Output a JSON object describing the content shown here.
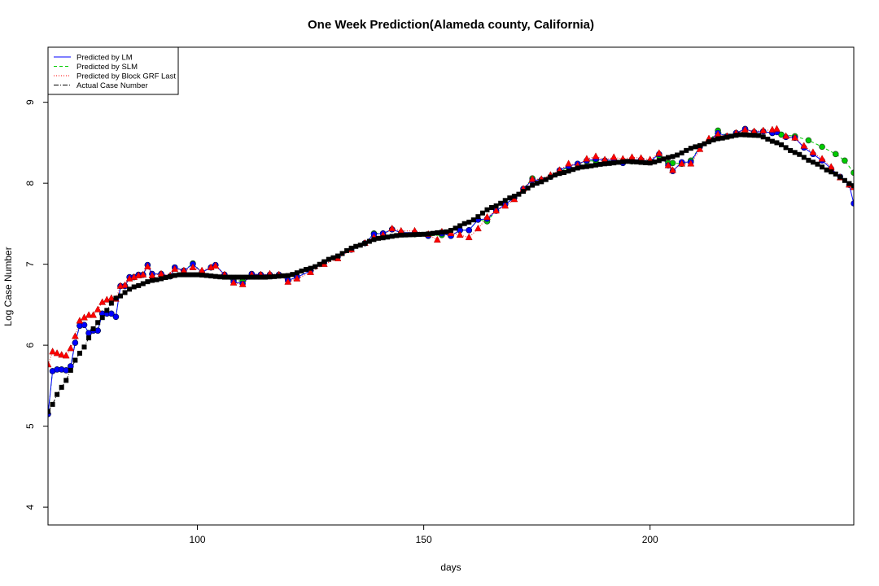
{
  "chart_data": {
    "type": "line",
    "title": "One Week Prediction(Alameda county, California)",
    "xlabel": "days",
    "ylabel": "Log Case Number",
    "xlim": [
      67,
      245
    ],
    "ylim": [
      3.78,
      9.68
    ],
    "x_ticks": [
      100,
      150,
      200
    ],
    "y_ticks": [
      4,
      5,
      6,
      7,
      8,
      9
    ],
    "grid": false,
    "legend_position": "top-left",
    "colors": {
      "lm": "#0000ff",
      "slm": "#00cc00",
      "grf": "#ff0000",
      "actual": "#000000"
    },
    "legend": [
      {
        "label": "Predicted by LM",
        "style": "solid",
        "color": "#0000ff"
      },
      {
        "label": "Predicted by SLM",
        "style": "dashed",
        "color": "#00cc00"
      },
      {
        "label": "Predicted by Block GRF Last",
        "style": "dotted",
        "color": "#ff0000"
      },
      {
        "label": "Actual Case Number",
        "style": "dotdash",
        "color": "#000000"
      }
    ],
    "actual_anchors": [
      [
        67,
        5.18
      ],
      [
        70,
        5.48
      ],
      [
        74,
        5.9
      ],
      [
        78,
        6.28
      ],
      [
        82,
        6.58
      ],
      [
        86,
        6.72
      ],
      [
        90,
        6.8
      ],
      [
        96,
        6.87
      ],
      [
        100,
        6.87
      ],
      [
        106,
        6.84
      ],
      [
        115,
        6.84
      ],
      [
        120,
        6.86
      ],
      [
        125,
        6.95
      ],
      [
        130,
        7.08
      ],
      [
        135,
        7.22
      ],
      [
        140,
        7.32
      ],
      [
        145,
        7.36
      ],
      [
        150,
        7.37
      ],
      [
        155,
        7.4
      ],
      [
        160,
        7.52
      ],
      [
        165,
        7.7
      ],
      [
        170,
        7.84
      ],
      [
        175,
        8.0
      ],
      [
        180,
        8.12
      ],
      [
        185,
        8.2
      ],
      [
        190,
        8.24
      ],
      [
        195,
        8.27
      ],
      [
        200,
        8.25
      ],
      [
        205,
        8.33
      ],
      [
        210,
        8.45
      ],
      [
        215,
        8.55
      ],
      [
        220,
        8.6
      ],
      [
        224,
        8.59
      ],
      [
        228,
        8.5
      ],
      [
        232,
        8.38
      ],
      [
        236,
        8.26
      ],
      [
        240,
        8.14
      ],
      [
        245,
        7.97
      ]
    ],
    "lm_points": [
      [
        67,
        5.15
      ],
      [
        68,
        5.68
      ],
      [
        69,
        5.7
      ],
      [
        70,
        5.7
      ],
      [
        71,
        5.69
      ],
      [
        72,
        5.74
      ],
      [
        73,
        6.03
      ],
      [
        74,
        6.24
      ],
      [
        75,
        6.25
      ],
      [
        76,
        6.15
      ],
      [
        77,
        6.18
      ],
      [
        78,
        6.18
      ],
      [
        79,
        6.39
      ],
      [
        80,
        6.39
      ],
      [
        81,
        6.39
      ],
      [
        82,
        6.35
      ],
      [
        83,
        6.73
      ],
      [
        84,
        6.73
      ],
      [
        85,
        6.84
      ],
      [
        86,
        6.84
      ],
      [
        87,
        6.87
      ],
      [
        88,
        6.87
      ],
      [
        89,
        6.99
      ],
      [
        90,
        6.88
      ],
      [
        92,
        6.88
      ],
      [
        94,
        6.85
      ],
      [
        95,
        6.96
      ],
      [
        97,
        6.92
      ],
      [
        99,
        7.0
      ],
      [
        101,
        6.9
      ],
      [
        103,
        6.96
      ],
      [
        104,
        6.99
      ],
      [
        106,
        6.87
      ],
      [
        108,
        6.78
      ],
      [
        110,
        6.76
      ],
      [
        112,
        6.88
      ],
      [
        114,
        6.87
      ],
      [
        116,
        6.87
      ],
      [
        118,
        6.87
      ],
      [
        120,
        6.8
      ],
      [
        122,
        6.84
      ],
      [
        125,
        6.92
      ],
      [
        128,
        7.02
      ],
      [
        131,
        7.09
      ],
      [
        134,
        7.18
      ],
      [
        137,
        7.26
      ],
      [
        139,
        7.37
      ],
      [
        141,
        7.38
      ],
      [
        143,
        7.43
      ],
      [
        145,
        7.39
      ],
      [
        148,
        7.39
      ],
      [
        151,
        7.35
      ],
      [
        154,
        7.38
      ],
      [
        156,
        7.35
      ],
      [
        158,
        7.42
      ],
      [
        160,
        7.42
      ],
      [
        162,
        7.55
      ],
      [
        164,
        7.56
      ],
      [
        166,
        7.66
      ],
      [
        168,
        7.74
      ],
      [
        170,
        7.82
      ],
      [
        172,
        7.93
      ],
      [
        174,
        8.04
      ],
      [
        176,
        8.04
      ],
      [
        178,
        8.08
      ],
      [
        180,
        8.16
      ],
      [
        182,
        8.21
      ],
      [
        184,
        8.24
      ],
      [
        186,
        8.28
      ],
      [
        188,
        8.3
      ],
      [
        190,
        8.28
      ],
      [
        192,
        8.29
      ],
      [
        194,
        8.25
      ],
      [
        196,
        8.29
      ],
      [
        198,
        8.29
      ],
      [
        200,
        8.27
      ],
      [
        202,
        8.36
      ],
      [
        204,
        8.22
      ],
      [
        205,
        8.15
      ],
      [
        207,
        8.26
      ],
      [
        209,
        8.26
      ],
      [
        211,
        8.45
      ],
      [
        213,
        8.52
      ],
      [
        215,
        8.62
      ],
      [
        217,
        8.58
      ],
      [
        219,
        8.62
      ],
      [
        221,
        8.67
      ],
      [
        223,
        8.63
      ],
      [
        225,
        8.64
      ],
      [
        227,
        8.62
      ],
      [
        228,
        8.63
      ],
      [
        230,
        8.57
      ],
      [
        232,
        8.56
      ],
      [
        234,
        8.44
      ],
      [
        236,
        8.36
      ],
      [
        238,
        8.28
      ],
      [
        240,
        8.18
      ],
      [
        242,
        8.08
      ],
      [
        244,
        7.98
      ],
      [
        245,
        7.75
      ]
    ],
    "slm_points": [
      [
        67,
        5.15
      ],
      [
        68,
        5.68
      ],
      [
        69,
        5.7
      ],
      [
        70,
        5.7
      ],
      [
        71,
        5.69
      ],
      [
        72,
        5.74
      ],
      [
        73,
        6.03
      ],
      [
        74,
        6.24
      ],
      [
        75,
        6.25
      ],
      [
        76,
        6.15
      ],
      [
        77,
        6.18
      ],
      [
        78,
        6.18
      ],
      [
        79,
        6.39
      ],
      [
        80,
        6.39
      ],
      [
        81,
        6.39
      ],
      [
        82,
        6.35
      ],
      [
        83,
        6.73
      ],
      [
        84,
        6.73
      ],
      [
        85,
        6.84
      ],
      [
        86,
        6.84
      ],
      [
        87,
        6.87
      ],
      [
        88,
        6.87
      ],
      [
        89,
        6.99
      ],
      [
        90,
        6.88
      ],
      [
        92,
        6.88
      ],
      [
        94,
        6.85
      ],
      [
        95,
        6.96
      ],
      [
        97,
        6.92
      ],
      [
        99,
        7.01
      ],
      [
        101,
        6.9
      ],
      [
        103,
        6.96
      ],
      [
        104,
        6.99
      ],
      [
        106,
        6.87
      ],
      [
        108,
        6.8
      ],
      [
        110,
        6.79
      ],
      [
        112,
        6.88
      ],
      [
        114,
        6.87
      ],
      [
        116,
        6.87
      ],
      [
        118,
        6.87
      ],
      [
        120,
        6.8
      ],
      [
        122,
        6.84
      ],
      [
        125,
        6.92
      ],
      [
        128,
        7.02
      ],
      [
        131,
        7.09
      ],
      [
        134,
        7.18
      ],
      [
        137,
        7.26
      ],
      [
        139,
        7.38
      ],
      [
        141,
        7.38
      ],
      [
        143,
        7.43
      ],
      [
        145,
        7.39
      ],
      [
        148,
        7.37
      ],
      [
        151,
        7.35
      ],
      [
        154,
        7.36
      ],
      [
        156,
        7.35
      ],
      [
        158,
        7.42
      ],
      [
        160,
        7.42
      ],
      [
        162,
        7.55
      ],
      [
        164,
        7.53
      ],
      [
        166,
        7.66
      ],
      [
        168,
        7.74
      ],
      [
        170,
        7.82
      ],
      [
        172,
        7.93
      ],
      [
        174,
        8.06
      ],
      [
        176,
        8.04
      ],
      [
        178,
        8.08
      ],
      [
        180,
        8.14
      ],
      [
        182,
        8.2
      ],
      [
        184,
        8.24
      ],
      [
        186,
        8.27
      ],
      [
        188,
        8.28
      ],
      [
        190,
        8.28
      ],
      [
        192,
        8.28
      ],
      [
        194,
        8.25
      ],
      [
        196,
        8.27
      ],
      [
        198,
        8.29
      ],
      [
        200,
        8.27
      ],
      [
        202,
        8.34
      ],
      [
        204,
        8.25
      ],
      [
        205,
        8.25
      ],
      [
        207,
        8.24
      ],
      [
        209,
        8.28
      ],
      [
        211,
        8.45
      ],
      [
        213,
        8.52
      ],
      [
        215,
        8.65
      ],
      [
        217,
        8.58
      ],
      [
        219,
        8.62
      ],
      [
        221,
        8.67
      ],
      [
        223,
        8.63
      ],
      [
        225,
        8.64
      ],
      [
        227,
        8.62
      ],
      [
        229,
        8.6
      ],
      [
        232,
        8.58
      ],
      [
        235,
        8.53
      ],
      [
        238,
        8.45
      ],
      [
        241,
        8.36
      ],
      [
        243,
        8.28
      ],
      [
        245,
        8.13
      ]
    ],
    "grf_points": [
      [
        67,
        5.76
      ],
      [
        68,
        5.92
      ],
      [
        69,
        5.9
      ],
      [
        70,
        5.88
      ],
      [
        71,
        5.87
      ],
      [
        72,
        5.96
      ],
      [
        73,
        6.11
      ],
      [
        74,
        6.3
      ],
      [
        75,
        6.34
      ],
      [
        76,
        6.37
      ],
      [
        77,
        6.37
      ],
      [
        78,
        6.44
      ],
      [
        79,
        6.53
      ],
      [
        80,
        6.56
      ],
      [
        81,
        6.58
      ],
      [
        82,
        6.57
      ],
      [
        83,
        6.73
      ],
      [
        84,
        6.74
      ],
      [
        85,
        6.82
      ],
      [
        86,
        6.84
      ],
      [
        87,
        6.86
      ],
      [
        88,
        6.87
      ],
      [
        89,
        6.97
      ],
      [
        90,
        6.86
      ],
      [
        92,
        6.88
      ],
      [
        94,
        6.86
      ],
      [
        95,
        6.94
      ],
      [
        97,
        6.92
      ],
      [
        99,
        6.96
      ],
      [
        101,
        6.92
      ],
      [
        103,
        6.96
      ],
      [
        104,
        6.98
      ],
      [
        106,
        6.87
      ],
      [
        108,
        6.77
      ],
      [
        110,
        6.75
      ],
      [
        112,
        6.87
      ],
      [
        114,
        6.87
      ],
      [
        116,
        6.88
      ],
      [
        118,
        6.87
      ],
      [
        120,
        6.78
      ],
      [
        122,
        6.82
      ],
      [
        125,
        6.9
      ],
      [
        128,
        7.0
      ],
      [
        131,
        7.07
      ],
      [
        134,
        7.18
      ],
      [
        137,
        7.26
      ],
      [
        139,
        7.33
      ],
      [
        141,
        7.36
      ],
      [
        143,
        7.44
      ],
      [
        145,
        7.41
      ],
      [
        148,
        7.41
      ],
      [
        151,
        7.37
      ],
      [
        153,
        7.3
      ],
      [
        154,
        7.4
      ],
      [
        156,
        7.38
      ],
      [
        158,
        7.36
      ],
      [
        160,
        7.33
      ],
      [
        162,
        7.44
      ],
      [
        164,
        7.58
      ],
      [
        166,
        7.66
      ],
      [
        168,
        7.72
      ],
      [
        170,
        7.8
      ],
      [
        172,
        7.93
      ],
      [
        174,
        8.05
      ],
      [
        176,
        8.05
      ],
      [
        178,
        8.1
      ],
      [
        180,
        8.16
      ],
      [
        182,
        8.24
      ],
      [
        184,
        8.22
      ],
      [
        186,
        8.3
      ],
      [
        188,
        8.33
      ],
      [
        190,
        8.29
      ],
      [
        192,
        8.32
      ],
      [
        194,
        8.3
      ],
      [
        196,
        8.32
      ],
      [
        198,
        8.31
      ],
      [
        200,
        8.29
      ],
      [
        202,
        8.37
      ],
      [
        204,
        8.22
      ],
      [
        205,
        8.16
      ],
      [
        207,
        8.24
      ],
      [
        209,
        8.24
      ],
      [
        211,
        8.42
      ],
      [
        213,
        8.55
      ],
      [
        215,
        8.6
      ],
      [
        217,
        8.58
      ],
      [
        219,
        8.62
      ],
      [
        221,
        8.66
      ],
      [
        223,
        8.64
      ],
      [
        225,
        8.65
      ],
      [
        227,
        8.66
      ],
      [
        228,
        8.67
      ],
      [
        230,
        8.58
      ],
      [
        232,
        8.56
      ],
      [
        234,
        8.46
      ],
      [
        236,
        8.38
      ],
      [
        238,
        8.3
      ],
      [
        240,
        8.2
      ],
      [
        242,
        8.07
      ],
      [
        244,
        7.98
      ],
      [
        245,
        7.95
      ]
    ]
  }
}
